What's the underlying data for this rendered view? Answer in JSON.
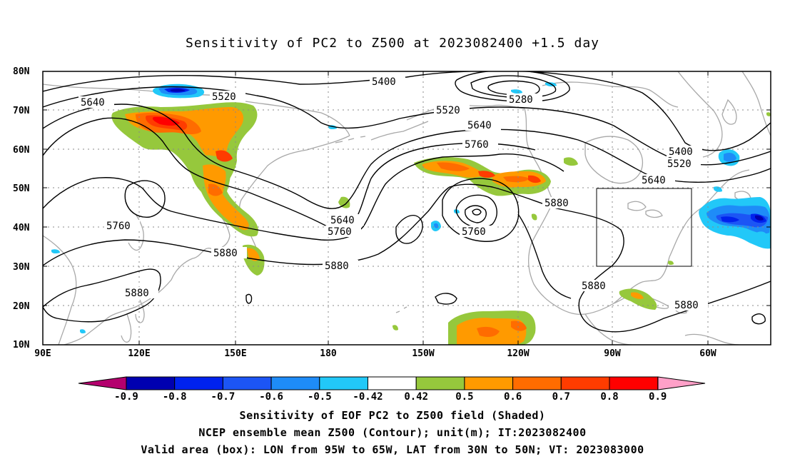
{
  "title": "Sensitivity of PC2 to Z500 at 2023082400 +1.5 day",
  "lat_labels": [
    "80N",
    "70N",
    "60N",
    "50N",
    "40N",
    "30N",
    "20N",
    "10N"
  ],
  "lon_labels": [
    "90E",
    "120E",
    "150E",
    "180",
    "150W",
    "120W",
    "90W",
    "60W"
  ],
  "contour_labels": [
    {
      "text": "5400",
      "id": "c5400a"
    },
    {
      "text": "5520",
      "id": "c5520a"
    },
    {
      "text": "5640",
      "id": "c5640a"
    },
    {
      "text": "5280",
      "id": "c5280"
    },
    {
      "text": "5520",
      "id": "c5520b"
    },
    {
      "text": "5640",
      "id": "c5640b"
    },
    {
      "text": "5760",
      "id": "c5760a"
    },
    {
      "text": "5400",
      "id": "c5400b"
    },
    {
      "text": "5520",
      "id": "c5520c"
    },
    {
      "text": "5640",
      "id": "c5640c"
    },
    {
      "text": "5640",
      "id": "c5640d"
    },
    {
      "text": "5760",
      "id": "c5760b"
    },
    {
      "text": "5760",
      "id": "c5760c"
    },
    {
      "text": "5760",
      "id": "c5760d"
    },
    {
      "text": "5880",
      "id": "c5880a"
    },
    {
      "text": "5880",
      "id": "c5880b"
    },
    {
      "text": "5880",
      "id": "c5880c"
    },
    {
      "text": "5880",
      "id": "c5880d"
    },
    {
      "text": "5880",
      "id": "c5880e"
    },
    {
      "text": "5880",
      "id": "c5880f"
    }
  ],
  "colorbar": {
    "labels": [
      "-0.9",
      "-0.8",
      "-0.7",
      "-0.6",
      "-0.5",
      "-0.42",
      "0.42",
      "0.5",
      "0.6",
      "0.7",
      "0.8",
      "0.9"
    ],
    "colors": [
      "#0000b0",
      "#0022ee",
      "#1c55f5",
      "#1e8cf8",
      "#22c8f8",
      "#ffffff",
      "#96c83c",
      "#ff9a00",
      "#ff6c00",
      "#ff3c00",
      "#ff0000"
    ],
    "low_extend_color": "#b4006e",
    "high_extend_color": "#ffa0c8"
  },
  "valid_box": {
    "lon_west": "95W",
    "lon_east": "65W",
    "lat_south": "30N",
    "lat_north": "50N"
  },
  "captions": {
    "line1": "Sensitivity of EOF PC2 to Z500 field (Shaded)",
    "line2": "NCEP ensemble mean Z500 (Contour); unit(m); IT:2023082400",
    "line3": "Valid area (box): LON from 95W to 65W, LAT from 30N to 50N; VT: 2023083000"
  }
}
